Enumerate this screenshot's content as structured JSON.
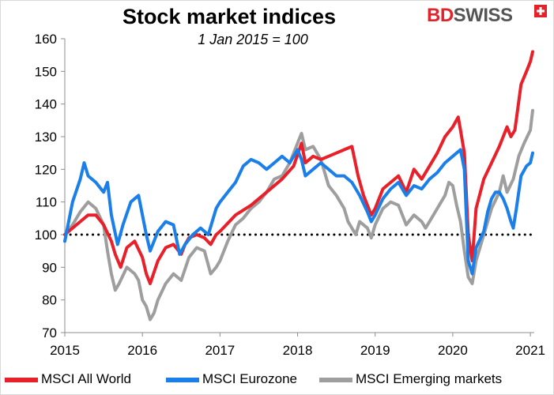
{
  "header": {
    "title": "Stock market indices",
    "subtitle": "1 Jan 2015 = 100",
    "logo_part1": "BD",
    "logo_part2": "SWISS"
  },
  "colors": {
    "all_world": "#e8202a",
    "eurozone": "#1a7fe8",
    "emerging": "#9e9e9e",
    "reference": "#000000",
    "logo_red": "#e3232c",
    "logo_grey": "#555555"
  },
  "chart_data": {
    "type": "line",
    "title": "Stock market indices",
    "subtitle": "1 Jan 2015 = 100",
    "xlabel": "",
    "ylabel": "",
    "xlim": [
      2015,
      2021.05
    ],
    "ylim": [
      70,
      160
    ],
    "x_ticks": [
      "2015",
      "2016",
      "2017",
      "2018",
      "2019",
      "2020",
      "2021"
    ],
    "y_ticks": [
      "70",
      "80",
      "90",
      "100",
      "110",
      "120",
      "130",
      "140",
      "150",
      "160"
    ],
    "reference_line": {
      "y": 100,
      "style": "dotted"
    },
    "grid": false,
    "legend_position": "bottom",
    "series": [
      {
        "name": "MSCI All World",
        "color": "#e8202a",
        "points": [
          [
            2015.0,
            100
          ],
          [
            2015.1,
            102
          ],
          [
            2015.2,
            104
          ],
          [
            2015.3,
            106
          ],
          [
            2015.4,
            106
          ],
          [
            2015.5,
            103
          ],
          [
            2015.6,
            98
          ],
          [
            2015.65,
            94
          ],
          [
            2015.72,
            90
          ],
          [
            2015.8,
            96
          ],
          [
            2015.9,
            98
          ],
          [
            2016.0,
            93
          ],
          [
            2016.05,
            88
          ],
          [
            2016.1,
            85
          ],
          [
            2016.2,
            92
          ],
          [
            2016.3,
            96
          ],
          [
            2016.4,
            97
          ],
          [
            2016.5,
            94
          ],
          [
            2016.55,
            97
          ],
          [
            2016.6,
            99
          ],
          [
            2016.7,
            100
          ],
          [
            2016.8,
            99
          ],
          [
            2016.88,
            97
          ],
          [
            2016.95,
            100
          ],
          [
            2017.0,
            101
          ],
          [
            2017.2,
            106
          ],
          [
            2017.4,
            109
          ],
          [
            2017.6,
            113
          ],
          [
            2017.8,
            117
          ],
          [
            2017.95,
            121
          ],
          [
            2018.05,
            128
          ],
          [
            2018.1,
            122
          ],
          [
            2018.2,
            124
          ],
          [
            2018.3,
            123
          ],
          [
            2018.4,
            124
          ],
          [
            2018.5,
            125
          ],
          [
            2018.6,
            126
          ],
          [
            2018.7,
            127
          ],
          [
            2018.78,
            118
          ],
          [
            2018.85,
            112
          ],
          [
            2018.95,
            106
          ],
          [
            2019.0,
            108
          ],
          [
            2019.1,
            114
          ],
          [
            2019.3,
            118
          ],
          [
            2019.4,
            113
          ],
          [
            2019.5,
            120
          ],
          [
            2019.6,
            117
          ],
          [
            2019.7,
            121
          ],
          [
            2019.8,
            125
          ],
          [
            2019.9,
            130
          ],
          [
            2020.0,
            133
          ],
          [
            2020.07,
            136
          ],
          [
            2020.1,
            132
          ],
          [
            2020.15,
            125
          ],
          [
            2020.2,
            100
          ],
          [
            2020.25,
            92
          ],
          [
            2020.3,
            108
          ],
          [
            2020.4,
            117
          ],
          [
            2020.5,
            122
          ],
          [
            2020.6,
            127
          ],
          [
            2020.7,
            133
          ],
          [
            2020.75,
            130
          ],
          [
            2020.8,
            132
          ],
          [
            2020.88,
            146
          ],
          [
            2020.95,
            150
          ],
          [
            2021.0,
            153
          ],
          [
            2021.03,
            156
          ]
        ]
      },
      {
        "name": "MSCI Eurozone",
        "color": "#1a7fe8",
        "points": [
          [
            2015.0,
            98
          ],
          [
            2015.05,
            104
          ],
          [
            2015.1,
            110
          ],
          [
            2015.2,
            117
          ],
          [
            2015.25,
            122
          ],
          [
            2015.3,
            118
          ],
          [
            2015.4,
            116
          ],
          [
            2015.5,
            113
          ],
          [
            2015.55,
            116
          ],
          [
            2015.6,
            106
          ],
          [
            2015.68,
            97
          ],
          [
            2015.75,
            103
          ],
          [
            2015.85,
            110
          ],
          [
            2015.95,
            112
          ],
          [
            2016.0,
            106
          ],
          [
            2016.05,
            100
          ],
          [
            2016.1,
            95
          ],
          [
            2016.2,
            101
          ],
          [
            2016.3,
            104
          ],
          [
            2016.4,
            103
          ],
          [
            2016.48,
            94
          ],
          [
            2016.55,
            97
          ],
          [
            2016.65,
            100
          ],
          [
            2016.75,
            102
          ],
          [
            2016.85,
            100
          ],
          [
            2016.95,
            108
          ],
          [
            2017.0,
            110
          ],
          [
            2017.1,
            113
          ],
          [
            2017.2,
            116
          ],
          [
            2017.3,
            121
          ],
          [
            2017.4,
            123
          ],
          [
            2017.5,
            122
          ],
          [
            2017.6,
            120
          ],
          [
            2017.7,
            122
          ],
          [
            2017.8,
            124
          ],
          [
            2017.9,
            122
          ],
          [
            2018.0,
            126
          ],
          [
            2018.05,
            123
          ],
          [
            2018.1,
            118
          ],
          [
            2018.2,
            120
          ],
          [
            2018.3,
            122
          ],
          [
            2018.4,
            120
          ],
          [
            2018.5,
            118
          ],
          [
            2018.6,
            118
          ],
          [
            2018.7,
            116
          ],
          [
            2018.8,
            112
          ],
          [
            2018.9,
            107
          ],
          [
            2018.95,
            104
          ],
          [
            2019.0,
            106
          ],
          [
            2019.1,
            111
          ],
          [
            2019.2,
            114
          ],
          [
            2019.3,
            116
          ],
          [
            2019.4,
            112
          ],
          [
            2019.5,
            115
          ],
          [
            2019.6,
            114
          ],
          [
            2019.7,
            117
          ],
          [
            2019.8,
            119
          ],
          [
            2019.9,
            122
          ],
          [
            2020.0,
            124
          ],
          [
            2020.1,
            126
          ],
          [
            2020.15,
            120
          ],
          [
            2020.2,
            92
          ],
          [
            2020.25,
            88
          ],
          [
            2020.3,
            96
          ],
          [
            2020.4,
            101
          ],
          [
            2020.45,
            107
          ],
          [
            2020.5,
            111
          ],
          [
            2020.55,
            113
          ],
          [
            2020.6,
            113
          ],
          [
            2020.65,
            111
          ],
          [
            2020.7,
            108
          ],
          [
            2020.75,
            104
          ],
          [
            2020.78,
            102
          ],
          [
            2020.82,
            108
          ],
          [
            2020.88,
            118
          ],
          [
            2020.95,
            121
          ],
          [
            2021.0,
            122
          ],
          [
            2021.03,
            125
          ]
        ]
      },
      {
        "name": "MSCI Emerging markets",
        "color": "#9e9e9e",
        "points": [
          [
            2015.0,
            100
          ],
          [
            2015.1,
            103
          ],
          [
            2015.2,
            107
          ],
          [
            2015.3,
            110
          ],
          [
            2015.4,
            108
          ],
          [
            2015.5,
            103
          ],
          [
            2015.55,
            95
          ],
          [
            2015.6,
            88
          ],
          [
            2015.65,
            83
          ],
          [
            2015.7,
            85
          ],
          [
            2015.8,
            90
          ],
          [
            2015.9,
            88
          ],
          [
            2015.95,
            86
          ],
          [
            2016.0,
            80
          ],
          [
            2016.05,
            78
          ],
          [
            2016.1,
            74
          ],
          [
            2016.15,
            76
          ],
          [
            2016.2,
            80
          ],
          [
            2016.3,
            85
          ],
          [
            2016.4,
            88
          ],
          [
            2016.5,
            86
          ],
          [
            2016.6,
            93
          ],
          [
            2016.7,
            96
          ],
          [
            2016.8,
            95
          ],
          [
            2016.88,
            88
          ],
          [
            2016.95,
            90
          ],
          [
            2017.0,
            92
          ],
          [
            2017.1,
            98
          ],
          [
            2017.2,
            103
          ],
          [
            2017.3,
            105
          ],
          [
            2017.4,
            108
          ],
          [
            2017.5,
            110
          ],
          [
            2017.6,
            113
          ],
          [
            2017.7,
            117
          ],
          [
            2017.8,
            118
          ],
          [
            2017.9,
            122
          ],
          [
            2018.0,
            128
          ],
          [
            2018.05,
            131
          ],
          [
            2018.1,
            126
          ],
          [
            2018.2,
            127
          ],
          [
            2018.3,
            123
          ],
          [
            2018.4,
            115
          ],
          [
            2018.5,
            112
          ],
          [
            2018.6,
            108
          ],
          [
            2018.65,
            104
          ],
          [
            2018.75,
            100
          ],
          [
            2018.8,
            104
          ],
          [
            2018.9,
            102
          ],
          [
            2018.95,
            99
          ],
          [
            2019.0,
            103
          ],
          [
            2019.1,
            108
          ],
          [
            2019.2,
            110
          ],
          [
            2019.3,
            109
          ],
          [
            2019.4,
            103
          ],
          [
            2019.5,
            106
          ],
          [
            2019.6,
            104
          ],
          [
            2019.65,
            102
          ],
          [
            2019.7,
            104
          ],
          [
            2019.8,
            108
          ],
          [
            2019.9,
            112
          ],
          [
            2019.95,
            116
          ],
          [
            2020.0,
            115
          ],
          [
            2020.05,
            109
          ],
          [
            2020.1,
            104
          ],
          [
            2020.15,
            95
          ],
          [
            2020.2,
            87
          ],
          [
            2020.25,
            85
          ],
          [
            2020.3,
            92
          ],
          [
            2020.4,
            100
          ],
          [
            2020.5,
            108
          ],
          [
            2020.6,
            113
          ],
          [
            2020.65,
            118
          ],
          [
            2020.7,
            113
          ],
          [
            2020.78,
            117
          ],
          [
            2020.85,
            124
          ],
          [
            2020.92,
            128
          ],
          [
            2021.0,
            132
          ],
          [
            2021.03,
            138
          ]
        ]
      }
    ]
  }
}
